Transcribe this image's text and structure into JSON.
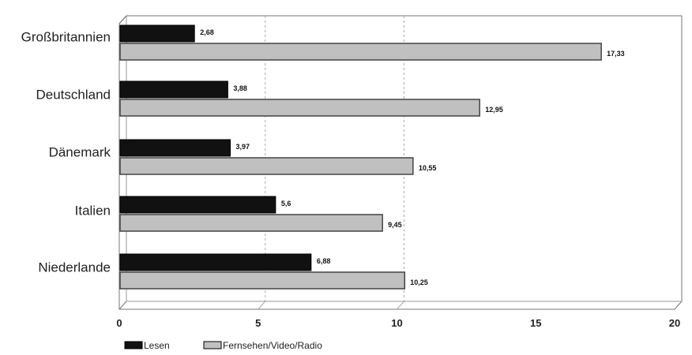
{
  "chart_data": {
    "type": "bar",
    "orientation": "horizontal",
    "categories": [
      "Großbritannien",
      "Deutschland",
      "Dänemark",
      "Italien",
      "Niederlande"
    ],
    "series": [
      {
        "name": "Lesen",
        "color": "#111111",
        "values": [
          2.68,
          3.88,
          3.97,
          5.6,
          6.88
        ],
        "labels": [
          "2,68",
          "3,88",
          "3,97",
          "5,6",
          "6,88"
        ]
      },
      {
        "name": "Fernsehen/Video/Radio",
        "color": "#c0c0c0",
        "values": [
          17.33,
          12.95,
          10.55,
          9.45,
          10.25
        ],
        "labels": [
          "17,33",
          "12,95",
          "10,55",
          "9,45",
          "10,25"
        ]
      }
    ],
    "xlim": [
      0,
      20
    ],
    "xticks": [
      0,
      5,
      10,
      15,
      20
    ],
    "xtick_labels": [
      "0",
      "5",
      "10",
      "15",
      "20"
    ],
    "grid": "vertical dashed at 5 and 10",
    "legend": "bottom-left",
    "title": "",
    "xlabel": "",
    "ylabel": ""
  }
}
